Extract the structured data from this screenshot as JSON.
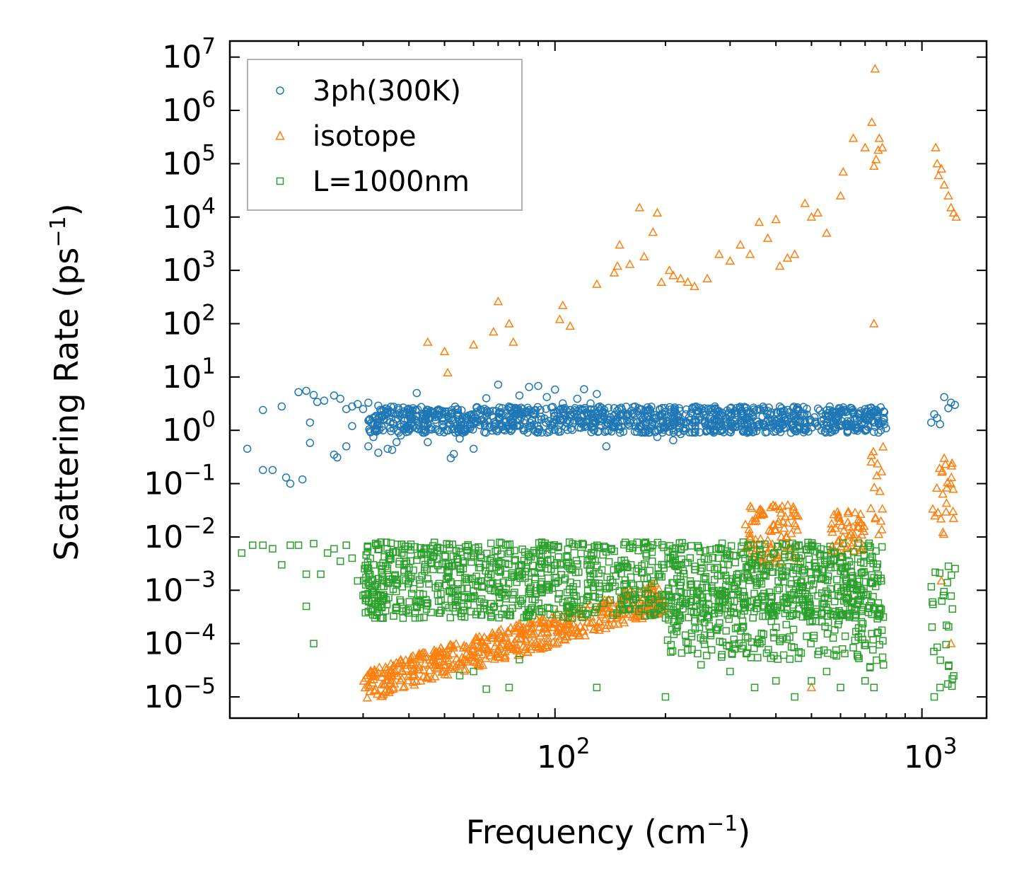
{
  "chart_data": {
    "type": "scatter",
    "xscale": "log",
    "yscale": "log",
    "xlim": [
      13,
      1500
    ],
    "ylim": [
      4e-06,
      20000000.0
    ],
    "xlabel": "Frequency (cm⁻¹)",
    "ylabel": "Scattering Rate (ps⁻¹)",
    "xticks": [
      100,
      1000
    ],
    "xtick_labels": [
      {
        "base": "10",
        "exp": "2"
      },
      {
        "base": "10",
        "exp": "3"
      }
    ],
    "yticks": [
      1e-05,
      0.0001,
      0.001,
      0.01,
      0.1,
      1,
      10,
      100,
      1000,
      10000,
      100000,
      1000000,
      10000000
    ],
    "ytick_labels": [
      {
        "base": "10",
        "exp": "−5"
      },
      {
        "base": "10",
        "exp": "−4"
      },
      {
        "base": "10",
        "exp": "−3"
      },
      {
        "base": "10",
        "exp": "−2"
      },
      {
        "base": "10",
        "exp": "−1"
      },
      {
        "base": "10",
        "exp": "0"
      },
      {
        "base": "10",
        "exp": "1"
      },
      {
        "base": "10",
        "exp": "2"
      },
      {
        "base": "10",
        "exp": "3"
      },
      {
        "base": "10",
        "exp": "4"
      },
      {
        "base": "10",
        "exp": "5"
      },
      {
        "base": "10",
        "exp": "6"
      },
      {
        "base": "10",
        "exp": "7"
      }
    ],
    "legend": {
      "position": "upper-left"
    },
    "series": [
      {
        "name": "3ph(300K)",
        "marker": "circle",
        "color": "#1f77b4",
        "points": [
          [
            14.5,
            0.45
          ],
          [
            16,
            2.4
          ],
          [
            16,
            0.18
          ],
          [
            17,
            0.18
          ],
          [
            18,
            2.8
          ],
          [
            18.5,
            0.13
          ],
          [
            19,
            0.1
          ],
          [
            20,
            5.2
          ],
          [
            20.5,
            0.12
          ],
          [
            21,
            5.5
          ],
          [
            21.5,
            1.4
          ],
          [
            21.5,
            0.58
          ],
          [
            22,
            4.6
          ],
          [
            22.5,
            3.4
          ],
          [
            23.5,
            3.6
          ],
          [
            25,
            4.5
          ],
          [
            25,
            0.35
          ],
          [
            25.5,
            0.31
          ],
          [
            26,
            3.9
          ],
          [
            27,
            2.5
          ],
          [
            27,
            0.5
          ],
          [
            28,
            2.8
          ],
          [
            28,
            1.2
          ],
          [
            29,
            3.1
          ],
          [
            30,
            2.5
          ],
          [
            31,
            3.3
          ],
          [
            31,
            0.5
          ],
          [
            32,
            0.75
          ],
          [
            33,
            2.9
          ],
          [
            33,
            0.38
          ],
          [
            34,
            1.0
          ],
          [
            35,
            0.45
          ],
          [
            35,
            2.2
          ],
          [
            36,
            0.43
          ],
          [
            37,
            0.6
          ],
          [
            38,
            0.8
          ],
          [
            40,
            1.9
          ],
          [
            42,
            5.0
          ],
          [
            44,
            1.2
          ],
          [
            45,
            0.6
          ],
          [
            48,
            2.3
          ],
          [
            52,
            0.3
          ],
          [
            53,
            0.36
          ],
          [
            55,
            0.7
          ],
          [
            56,
            0.9
          ],
          [
            60,
            0.45
          ],
          [
            65,
            4.0
          ],
          [
            70,
            7.2
          ],
          [
            75,
            2.6
          ],
          [
            80,
            4.5
          ],
          [
            85,
            6.5
          ],
          [
            90,
            6.8
          ],
          [
            95,
            4.2
          ],
          [
            100,
            5.8
          ],
          [
            105,
            3.2
          ],
          [
            110,
            2.4
          ],
          [
            115,
            3.9
          ],
          [
            120,
            5.9
          ],
          [
            125,
            3.2
          ],
          [
            130,
            4.8
          ],
          [
            135,
            2.1
          ],
          [
            138,
            0.5
          ],
          [
            145,
            2.6
          ],
          [
            150,
            1.9
          ],
          [
            160,
            1.4
          ],
          [
            170,
            1.2
          ],
          [
            180,
            0.9
          ],
          [
            190,
            0.75
          ],
          [
            200,
            1.1
          ],
          [
            210,
            0.65
          ],
          [
            220,
            0.85
          ],
          [
            240,
            0.95
          ],
          [
            260,
            1.0
          ],
          [
            280,
            1.2
          ],
          [
            300,
            1.4
          ],
          [
            320,
            2.5
          ],
          [
            340,
            1.5
          ],
          [
            360,
            1.3
          ],
          [
            380,
            1.6
          ],
          [
            400,
            1.5
          ],
          [
            420,
            1.1
          ],
          [
            440,
            0.9
          ],
          [
            460,
            1.2
          ],
          [
            480,
            1.0
          ],
          [
            520,
            1.2
          ],
          [
            560,
            1.1
          ],
          [
            600,
            1.2
          ],
          [
            640,
            1.5
          ],
          [
            680,
            1.7
          ],
          [
            700,
            2.5
          ],
          [
            720,
            1.7
          ],
          [
            740,
            1.4
          ],
          [
            760,
            1.5
          ],
          [
            790,
            1.3
          ],
          [
            1060,
            1.4
          ],
          [
            1080,
            2.0
          ],
          [
            1100,
            1.7
          ],
          [
            1120,
            1.3
          ],
          [
            1150,
            4.2
          ],
          [
            1180,
            2.6
          ],
          [
            1200,
            3.3
          ],
          [
            1230,
            3.0
          ]
        ],
        "bands": [
          {
            "x": [
              31,
              800
            ],
            "y": [
              0.9,
              2.8
            ],
            "density": 6
          }
        ]
      },
      {
        "name": "isotope",
        "marker": "triangle",
        "color": "#ff7f0e",
        "points": [
          [
            45,
            45
          ],
          [
            50,
            30
          ],
          [
            51,
            12
          ],
          [
            60,
            40
          ],
          [
            70,
            260
          ],
          [
            68,
            70
          ],
          [
            75,
            100
          ],
          [
            77,
            45
          ],
          [
            105,
            220
          ],
          [
            103,
            120
          ],
          [
            110,
            90
          ],
          [
            130,
            550
          ],
          [
            145,
            900
          ],
          [
            148,
            1200
          ],
          [
            150,
            3000
          ],
          [
            160,
            1300
          ],
          [
            170,
            15000
          ],
          [
            175,
            1800
          ],
          [
            185,
            5200
          ],
          [
            190,
            12000
          ],
          [
            195,
            600
          ],
          [
            205,
            1000
          ],
          [
            210,
            800
          ],
          [
            220,
            700
          ],
          [
            230,
            600
          ],
          [
            240,
            500
          ],
          [
            260,
            700
          ],
          [
            280,
            2000
          ],
          [
            300,
            1500
          ],
          [
            320,
            3000
          ],
          [
            340,
            2000
          ],
          [
            360,
            8000
          ],
          [
            380,
            4000
          ],
          [
            400,
            9000
          ],
          [
            410,
            1200
          ],
          [
            430,
            1700
          ],
          [
            450,
            2000
          ],
          [
            480,
            18000
          ],
          [
            500,
            10000
          ],
          [
            520,
            12000
          ],
          [
            550,
            5000
          ],
          [
            600,
            25000
          ],
          [
            610,
            70000
          ],
          [
            650,
            300000
          ],
          [
            700,
            200000
          ],
          [
            730,
            600000
          ],
          [
            740,
            90000
          ],
          [
            745,
            6000000
          ],
          [
            750,
            120000
          ],
          [
            760,
            180000
          ],
          [
            765,
            300000
          ],
          [
            780,
            200000
          ],
          [
            1090,
            200000
          ],
          [
            1100,
            100000
          ],
          [
            1110,
            60000
          ],
          [
            1130,
            80000
          ],
          [
            1150,
            40000
          ],
          [
            1180,
            25000
          ],
          [
            1200,
            15000
          ],
          [
            1220,
            12000
          ],
          [
            1240,
            10000
          ],
          [
            740,
            100
          ],
          [
            500,
            1.5e-05
          ],
          [
            1130,
            0.0015
          ],
          [
            1200,
            0.0001
          ]
        ],
        "bands": [
          {
            "x": [
              30,
              200
            ],
            "y_start": [
              1.2e-05,
              0.0006
            ],
            "spread": 0.6,
            "density": 5
          },
          {
            "x": [
              330,
              460
            ],
            "y": [
              0.003,
              0.04
            ],
            "density": 5
          },
          {
            "x": [
              560,
              700
            ],
            "y": [
              0.005,
              0.03
            ],
            "density": 4
          },
          {
            "x": [
              720,
              790
            ],
            "y": [
              0.01,
              0.5
            ],
            "density": 3
          },
          {
            "x": [
              1060,
              1220
            ],
            "y": [
              0.01,
              0.5
            ],
            "density": 3
          }
        ]
      },
      {
        "name": "L=1000nm",
        "marker": "square",
        "color": "#2ca02c",
        "points": [
          [
            14,
            0.005
          ],
          [
            15,
            0.007
          ],
          [
            16,
            0.007
          ],
          [
            17,
            0.006
          ],
          [
            18,
            0.003
          ],
          [
            19,
            0.007
          ],
          [
            20,
            0.007
          ],
          [
            21,
            0.002
          ],
          [
            21,
            0.0005
          ],
          [
            22,
            0.0001
          ],
          [
            22,
            0.0075
          ],
          [
            23,
            0.002
          ],
          [
            24,
            0.005
          ],
          [
            25,
            0.006
          ],
          [
            26,
            0.0035
          ],
          [
            27,
            0.007
          ],
          [
            28,
            0.004
          ],
          [
            29,
            0.0015
          ],
          [
            30,
            0.0008
          ],
          [
            31,
            0.0004
          ],
          [
            32,
            0.003
          ],
          [
            34,
            0.0003
          ],
          [
            38,
            0.0006
          ],
          [
            42,
            0.0005
          ],
          [
            48,
            0.0012
          ],
          [
            55,
            2.5e-05
          ],
          [
            60,
            3e-05
          ],
          [
            65,
            1.4e-05
          ],
          [
            75,
            1.5e-05
          ],
          [
            80,
            5e-05
          ],
          [
            130,
            1.5e-05
          ],
          [
            200,
            1e-05
          ],
          [
            250,
            4e-05
          ],
          [
            300,
            3e-05
          ],
          [
            350,
            1.5e-05
          ],
          [
            400,
            2e-05
          ],
          [
            450,
            1e-05
          ],
          [
            500,
            2e-05
          ],
          [
            550,
            3e-05
          ],
          [
            600,
            1.5e-05
          ],
          [
            700,
            2e-05
          ],
          [
            740,
            1.5e-05
          ],
          [
            1080,
            1e-05
          ],
          [
            1120,
            1.5e-05
          ]
        ],
        "bands": [
          {
            "x": [
              30,
              780
            ],
            "y": [
              0.0003,
              0.008
            ],
            "density": 7
          },
          {
            "x": [
              200,
              780
            ],
            "y": [
              5e-05,
              0.001
            ],
            "density": 3
          },
          {
            "x": [
              720,
              790
            ],
            "y": [
              2e-05,
              0.002
            ],
            "density": 3
          },
          {
            "x": [
              1060,
              1240
            ],
            "y": [
              1.5e-05,
              0.003
            ],
            "density": 3
          }
        ]
      }
    ]
  }
}
